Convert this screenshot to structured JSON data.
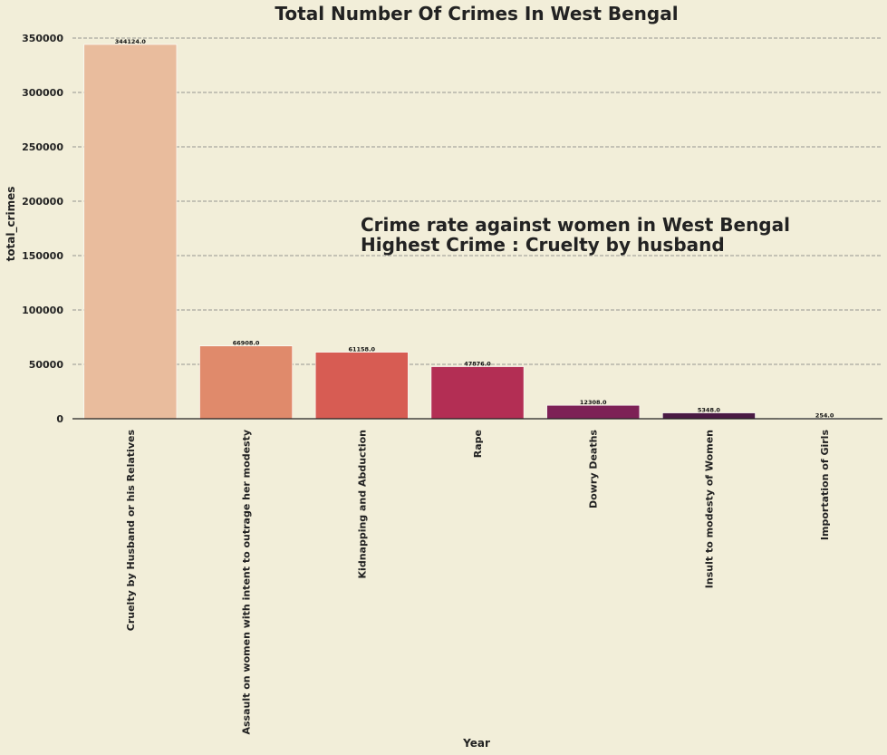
{
  "chart_data": {
    "type": "bar",
    "title": "Total Number Of Crimes In West Bengal",
    "xlabel": "Year",
    "ylabel": "total_crimes",
    "ylim": [
      0,
      350000
    ],
    "yticks": [
      0,
      50000,
      100000,
      150000,
      200000,
      250000,
      300000,
      350000
    ],
    "grid": true,
    "categories": [
      "Cruelty by Husband or his Relatives",
      "Assault on women with intent to outrage her modesty",
      "Kidnapping and Abduction",
      "Rape",
      "Dowry Deaths",
      "Insult to modesty of Women",
      "Importation of Girls"
    ],
    "values": [
      344124,
      66908,
      61158,
      47876,
      12308,
      5348,
      254
    ],
    "data_labels": [
      "344124.0",
      "66908.0",
      "61158.0",
      "47876.0",
      "12308.0",
      "5348.0",
      "254.0"
    ],
    "colors": [
      "#e9bc9d",
      "#e08a6b",
      "#d75c53",
      "#b32e54",
      "#7d2156",
      "#4a1a44",
      "#1e0f24"
    ],
    "annotation": {
      "line1": "Crime rate against women in West Bengal",
      "line2": "Highest Crime : Cruelty by husband"
    }
  }
}
